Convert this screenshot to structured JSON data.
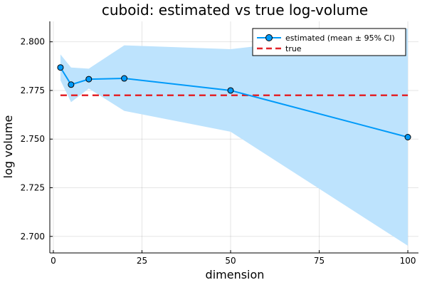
{
  "chart_data": {
    "type": "line",
    "title": "cuboid: estimated vs true log-volume",
    "xlabel": "dimension",
    "ylabel": "log volume",
    "xlim": [
      -1,
      103
    ],
    "ylim": [
      2.6915,
      2.8105
    ],
    "x_ticks": [
      0,
      25,
      50,
      75,
      100
    ],
    "x_tick_labels": [
      "0",
      "25",
      "50",
      "75",
      "100"
    ],
    "y_ticks": [
      2.7,
      2.725,
      2.75,
      2.775,
      2.8
    ],
    "y_tick_labels": [
      "2.700",
      "2.725",
      "2.750",
      "2.775",
      "2.800"
    ],
    "grid": true,
    "legend_position": "top-right",
    "series": [
      {
        "name": "estimated (mean ± 95% CI)",
        "color": "#009af9",
        "band_color": "#bde3fd",
        "x": [
          2,
          5,
          10,
          20,
          50,
          100
        ],
        "y": [
          2.7868,
          2.778,
          2.7808,
          2.7812,
          2.775,
          2.751
        ],
        "ci_low": [
          2.7802,
          2.769,
          2.776,
          2.7645,
          2.7538,
          2.6952
        ],
        "ci_high": [
          2.7935,
          2.7868,
          2.7862,
          2.7982,
          2.7962,
          2.8068
        ]
      },
      {
        "name": "true",
        "color": "#e2242a",
        "x": [
          2,
          100
        ],
        "y": [
          2.7725,
          2.7725
        ],
        "style": "dashed"
      }
    ]
  }
}
